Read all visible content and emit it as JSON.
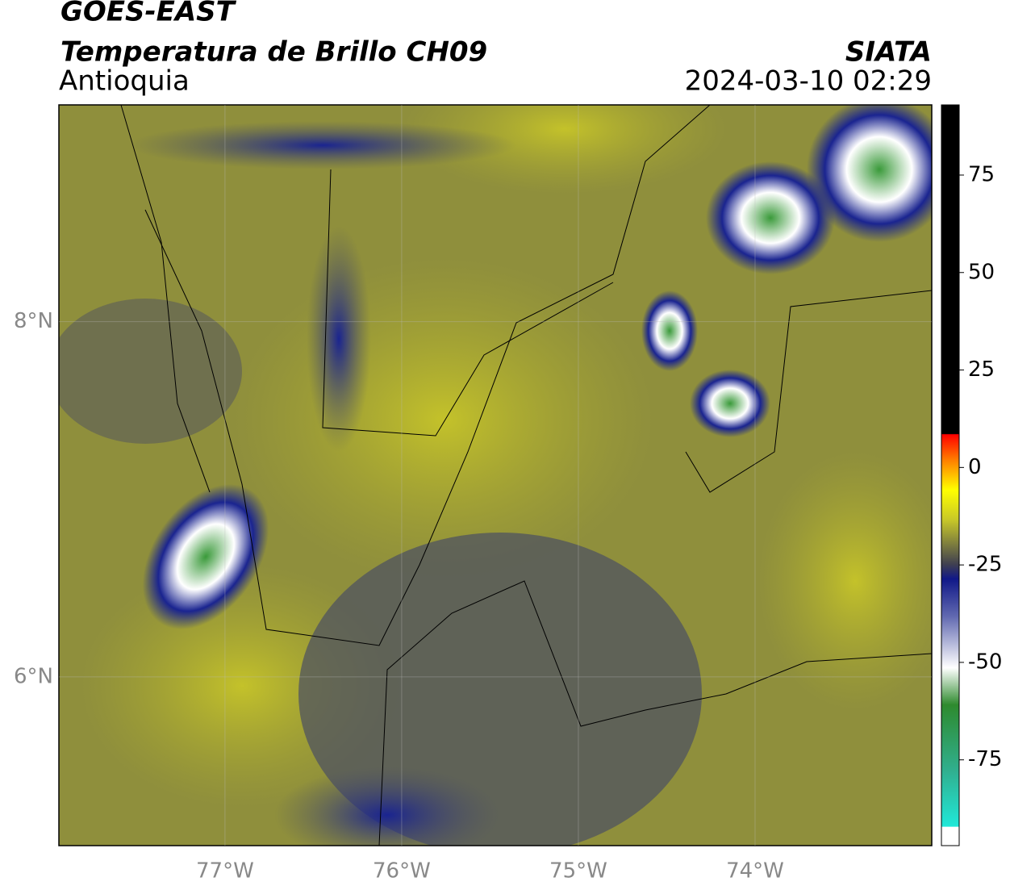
{
  "header": {
    "title": "GOES-EAST",
    "subtitle": "Temperatura de Brillo CH09",
    "region": "Antioquia",
    "source": "SIATA",
    "timestamp": "2024-03-10 02:29"
  },
  "map": {
    "xlim": [
      -77.94,
      -73.0
    ],
    "ylim": [
      5.05,
      9.22
    ],
    "xticks": [
      {
        "value": -77,
        "label": "77°W"
      },
      {
        "value": -76,
        "label": "76°W"
      },
      {
        "value": -75,
        "label": "75°W"
      },
      {
        "value": -74,
        "label": "74°W"
      }
    ],
    "yticks": [
      {
        "value": 8,
        "label": "8°N"
      },
      {
        "value": 6,
        "label": "6°N"
      }
    ]
  },
  "colorbar": {
    "vlim": [
      -97,
      93
    ],
    "ticks": [
      75,
      50,
      25,
      0,
      -25,
      -50,
      -75
    ]
  }
}
